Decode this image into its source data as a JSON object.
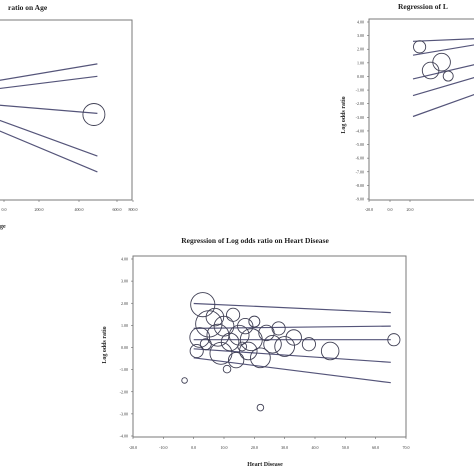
{
  "colors": {
    "line": "#55557a",
    "bubble": "#404055",
    "frame": "#7a7a7a"
  },
  "chart_data": [
    {
      "type": "scatter",
      "title": "Regression of Log odds ratio on Age",
      "title_visible": "ratio on Age",
      "xlabel": "Age",
      "xlabel_visible": "ge",
      "ylabel": "",
      "xticks": [
        "0.0",
        "200.0",
        "400.0",
        "600.0",
        "700.0",
        "800.0"
      ],
      "xlim": [
        0,
        820
      ],
      "ylim": [
        -4,
        4
      ],
      "lines": [
        {
          "x": [
            0,
            620
          ],
          "y": [
            1.25,
            2.05
          ]
        },
        {
          "x": [
            0,
            620
          ],
          "y": [
            0.9,
            1.5
          ]
        },
        {
          "x": [
            0,
            620
          ],
          "y": [
            0.25,
            -0.15
          ]
        },
        {
          "x": [
            0,
            620
          ],
          "y": [
            -0.3,
            -2.05
          ]
        },
        {
          "x": [
            0,
            620
          ],
          "y": [
            -0.75,
            -2.75
          ]
        }
      ],
      "points": [
        {
          "x": 600,
          "y": -0.2,
          "size": 1
        }
      ]
    },
    {
      "type": "scatter",
      "title": "Regression of Log odds ratio on L",
      "title_visible": "Regression of L",
      "xlabel": "",
      "ylabel": "Log odds ratio",
      "xticks": [
        "-20.0",
        "0.0",
        "20.0"
      ],
      "yticks": [
        "4.00",
        "3.00",
        "2.00",
        "1.00",
        "0.00",
        "-1.00",
        "-2.00",
        "-3.00",
        "-4.00",
        "-5.00",
        "-6.00",
        "-7.00",
        "-8.00",
        "-9.00"
      ],
      "xlim": [
        -20,
        30
      ],
      "ylim": [
        -9,
        4
      ],
      "lines": [
        {
          "x": [
            0,
            30
          ],
          "y": [
            2.4,
            2.6
          ]
        },
        {
          "x": [
            0,
            30
          ],
          "y": [
            1.4,
            2.2
          ]
        },
        {
          "x": [
            0,
            30
          ],
          "y": [
            -0.3,
            0.8
          ]
        },
        {
          "x": [
            0,
            30
          ],
          "y": [
            -1.5,
            -0.1
          ]
        },
        {
          "x": [
            0,
            30
          ],
          "y": [
            -3.0,
            -1.3
          ]
        }
      ],
      "points": [
        {
          "x": 3,
          "y": 2.0,
          "size": 0.55
        },
        {
          "x": 8,
          "y": 0.3,
          "size": 0.75
        },
        {
          "x": 13,
          "y": 0.9,
          "size": 0.8
        },
        {
          "x": 16,
          "y": -0.1,
          "size": 0.45
        }
      ]
    },
    {
      "type": "scatter",
      "title": "Regression of Log odds ratio on Heart Disease",
      "xlabel": "Heart Disease",
      "ylabel": "Log odds ratio",
      "xticks": [
        "-20.0",
        "-10.0",
        "0.0",
        "10.0",
        "20.0",
        "30.0",
        "40.0",
        "50.0",
        "60.0",
        "70.0"
      ],
      "yticks": [
        "4.00",
        "3.00",
        "2.00",
        "1.00",
        "0.00",
        "-1.00",
        "-2.00",
        "-3.00",
        "-4.00"
      ],
      "xlim": [
        -20,
        70
      ],
      "ylim": [
        -4,
        4
      ],
      "lines": [
        {
          "x": [
            0,
            65
          ],
          "y": [
            1.9,
            1.5
          ]
        },
        {
          "x": [
            0,
            65
          ],
          "y": [
            0.8,
            0.9
          ]
        },
        {
          "x": [
            0,
            65
          ],
          "y": [
            0.3,
            0.3
          ]
        },
        {
          "x": [
            0,
            65
          ],
          "y": [
            -0.1,
            -0.7
          ]
        },
        {
          "x": [
            0,
            65
          ],
          "y": [
            -0.5,
            -1.6
          ]
        }
      ],
      "points": [
        {
          "x": 3,
          "y": 1.85,
          "size": 1.1
        },
        {
          "x": 5,
          "y": 1.0,
          "size": 1.2
        },
        {
          "x": 2,
          "y": 0.4,
          "size": 0.9
        },
        {
          "x": 1,
          "y": -0.2,
          "size": 0.6
        },
        {
          "x": 7,
          "y": 1.3,
          "size": 0.8
        },
        {
          "x": 8,
          "y": 0.5,
          "size": 1.0
        },
        {
          "x": 10,
          "y": 0.9,
          "size": 0.9
        },
        {
          "x": 9,
          "y": -0.3,
          "size": 1.0
        },
        {
          "x": 12,
          "y": 0.2,
          "size": 0.8
        },
        {
          "x": 13,
          "y": 1.4,
          "size": 0.6
        },
        {
          "x": 14,
          "y": -0.6,
          "size": 0.7
        },
        {
          "x": 15,
          "y": 0.5,
          "size": 0.9
        },
        {
          "x": 17,
          "y": 0.9,
          "size": 0.7
        },
        {
          "x": 18,
          "y": -0.2,
          "size": 0.8
        },
        {
          "x": 19,
          "y": 0.3,
          "size": 1.0
        },
        {
          "x": 20,
          "y": 1.1,
          "size": 0.5
        },
        {
          "x": 22,
          "y": -0.5,
          "size": 0.9
        },
        {
          "x": 24,
          "y": 0.6,
          "size": 0.7
        },
        {
          "x": 26,
          "y": 0.1,
          "size": 0.8
        },
        {
          "x": 28,
          "y": 0.8,
          "size": 0.6
        },
        {
          "x": 30,
          "y": 0.0,
          "size": 0.9
        },
        {
          "x": 33,
          "y": 0.4,
          "size": 0.7
        },
        {
          "x": 38,
          "y": 0.1,
          "size": 0.6
        },
        {
          "x": 45,
          "y": -0.2,
          "size": 0.8
        },
        {
          "x": 66,
          "y": 0.3,
          "size": 0.55
        },
        {
          "x": 4,
          "y": 0.1,
          "size": 0.5
        },
        {
          "x": 11,
          "y": -1.0,
          "size": 0.35
        },
        {
          "x": -3,
          "y": -1.5,
          "size": 0.25
        },
        {
          "x": 22,
          "y": -2.7,
          "size": 0.3
        },
        {
          "x": 16,
          "y": 0.0,
          "size": 0.4
        }
      ]
    }
  ]
}
